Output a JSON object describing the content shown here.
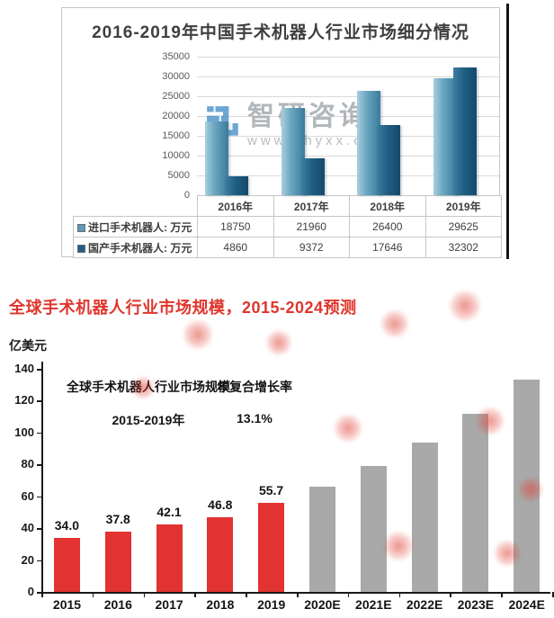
{
  "chart_data": [
    {
      "type": "bar",
      "title": "2016-2019年中国手术机器人行业市场细分情况",
      "categories": [
        "2016年",
        "2017年",
        "2018年",
        "2019年"
      ],
      "series": [
        {
          "name": "进口手术机器人: 万元",
          "values": [
            18750,
            21960,
            26400,
            29625
          ],
          "color": "#5d9cb8"
        },
        {
          "name": "国产手术机器人: 万元",
          "values": [
            4860,
            9372,
            17646,
            32302
          ],
          "color": "#1f5d83"
        }
      ],
      "ylim": [
        0,
        35000
      ],
      "y_tick_step": 5000,
      "grid": true,
      "legend_position": "table-left-of-data-table",
      "data_table_shown": true,
      "watermark": {
        "brand": "智研咨询",
        "url": "www.chyxx.com"
      }
    },
    {
      "type": "bar",
      "title": "全球手术机器人行业市场规模，2015-2024预测",
      "unit": "亿美元",
      "categories": [
        "2015",
        "2016",
        "2017",
        "2018",
        "2019",
        "2020E",
        "2021E",
        "2022E",
        "2023E",
        "2024E"
      ],
      "values": [
        34.0,
        37.8,
        42.1,
        46.8,
        55.7,
        66,
        79,
        94,
        112,
        133
      ],
      "data_labels": [
        "34.0",
        "37.8",
        "42.1",
        "46.8",
        "55.7",
        "",
        "",
        "",
        "",
        ""
      ],
      "bar_color_actual": "#e23232",
      "bar_color_forecast": "#a9a9a9",
      "actual_count": 5,
      "ylim": [
        0,
        140
      ],
      "y_tick_step": 20,
      "grid": false,
      "legend_position": "none",
      "annotation": {
        "headers": [
          "全球手术机器人行业市场规模",
          "年复合增长率"
        ],
        "values": [
          "2015-2019年",
          "13.1%"
        ]
      }
    }
  ]
}
